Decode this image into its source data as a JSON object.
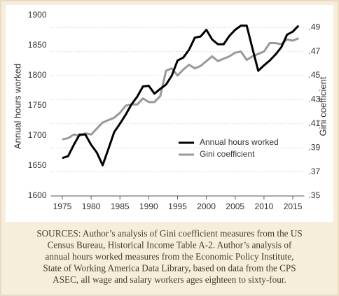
{
  "chart_data": {
    "type": "line",
    "ylabel": "Annual hours worked",
    "y2label": "Gini coefficient",
    "x": [
      1975,
      1976,
      1977,
      1978,
      1979,
      1980,
      1981,
      1982,
      1983,
      1984,
      1985,
      1986,
      1987,
      1988,
      1989,
      1990,
      1991,
      1992,
      1993,
      1994,
      1995,
      1996,
      1997,
      1998,
      1999,
      2000,
      2001,
      2002,
      2003,
      2004,
      2005,
      2006,
      2007,
      2008,
      2009,
      2010,
      2011,
      2012,
      2013,
      2014,
      2015,
      2016
    ],
    "series": [
      {
        "name": "Annual hours worked",
        "color": "#000000",
        "values": [
          1663,
          1666,
          1685,
          1702,
          1702,
          1685,
          1672,
          1651,
          1678,
          1706,
          1720,
          1735,
          1752,
          1765,
          1782,
          1783,
          1770,
          1778,
          1785,
          1800,
          1825,
          1830,
          1843,
          1863,
          1865,
          1876,
          1860,
          1852,
          1852,
          1866,
          1876,
          1883,
          1883,
          1845,
          1808,
          1817,
          1825,
          1835,
          1847,
          1868,
          1873,
          1883
        ]
      },
      {
        "name": "Gini coefficient",
        "color": "#999999",
        "axis": "y2",
        "values": [
          0.397,
          0.398,
          0.401,
          0.4,
          0.402,
          0.401,
          0.406,
          0.411,
          0.413,
          0.415,
          0.419,
          0.425,
          0.426,
          0.426,
          0.431,
          0.428,
          0.428,
          0.433,
          0.454,
          0.456,
          0.45,
          0.455,
          0.459,
          0.456,
          0.458,
          0.462,
          0.466,
          0.462,
          0.464,
          0.466,
          0.469,
          0.47,
          0.463,
          0.466,
          0.468,
          0.47,
          0.477,
          0.477,
          0.476,
          0.48,
          0.479,
          0.481
        ]
      }
    ],
    "xlim": [
      1973,
      2017
    ],
    "xticks": [
      1975,
      1980,
      1985,
      1990,
      1995,
      2000,
      2005,
      2010,
      2015
    ],
    "ylim": [
      1600,
      1900
    ],
    "yticks": [
      1600,
      1650,
      1700,
      1750,
      1800,
      1850,
      1900
    ],
    "y2lim": [
      0.35,
      0.5
    ],
    "y2ticks": [
      {
        "value": 0.35,
        "label": ".35"
      },
      {
        "value": 0.37,
        "label": ".37"
      },
      {
        "value": 0.39,
        "label": ".39"
      },
      {
        "value": 0.41,
        "label": ".41"
      },
      {
        "value": 0.43,
        "label": ".43"
      },
      {
        "value": 0.45,
        "label": ".45"
      },
      {
        "value": 0.47,
        "label": ".47"
      },
      {
        "value": 0.49,
        "label": ".49"
      }
    ],
    "grid": "y2",
    "legend": "center-right",
    "caption": [
      "SOURCES: Author’s analysis of Gini coefficient measures from the US",
      "Census Bureau, Historical Income Table A-2. Author’s analysis of",
      "annual hours worked measures from the Economic Policy Institute,",
      "State of Working America Data Library, based on data from the CPS",
      "ASEC, all wage and salary workers ages eighteen to sixty-four."
    ]
  }
}
